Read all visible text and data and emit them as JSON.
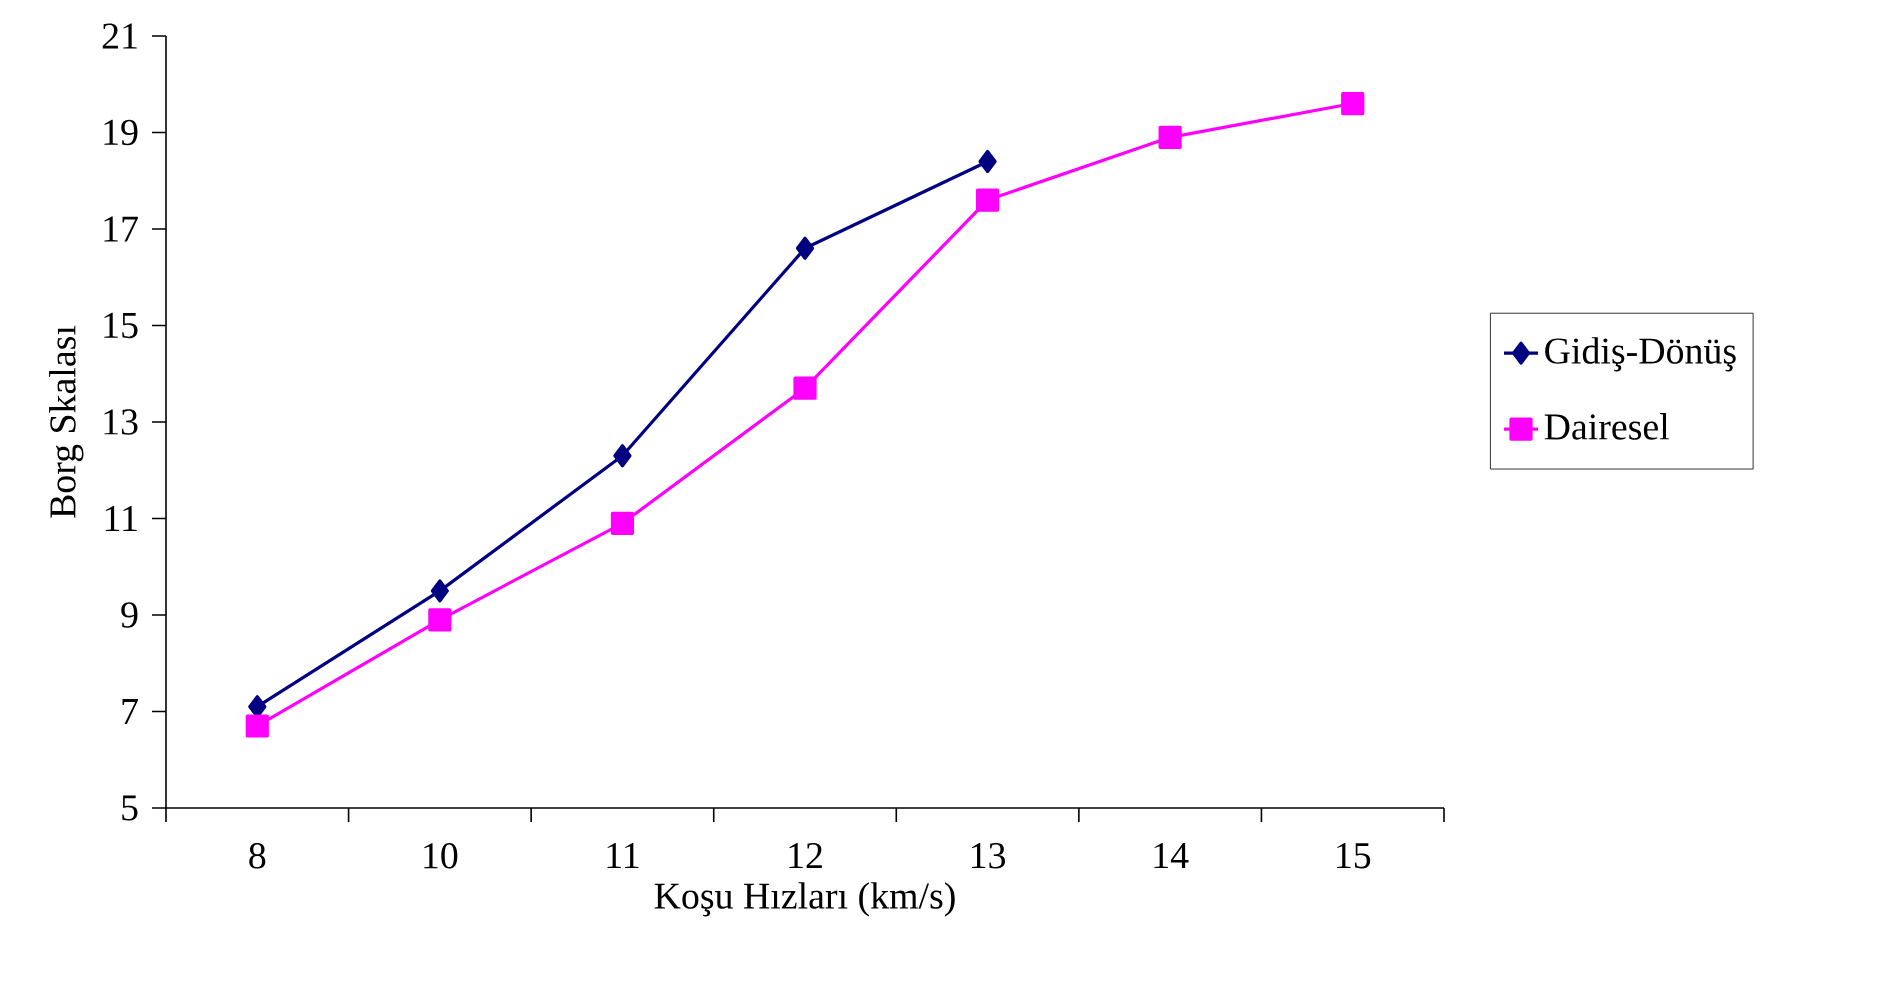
{
  "chart_data": {
    "type": "line",
    "xlabel": "Koşu Hızları (km/s)",
    "ylabel": "Borg Skalası",
    "categories": [
      "8",
      "10",
      "11",
      "12",
      "13",
      "14",
      "15"
    ],
    "ylim": [
      5,
      21
    ],
    "yticks": [
      5,
      7,
      9,
      11,
      13,
      15,
      17,
      19,
      21
    ],
    "grid": false,
    "legend": "right",
    "series": [
      {
        "name": "Gidiş-Dönüş",
        "color": "#000080",
        "marker": "diamond",
        "values": [
          7.1,
          9.5,
          12.3,
          16.6,
          18.4,
          null,
          null
        ]
      },
      {
        "name": "Dairesel",
        "color": "#ff00ff",
        "marker": "square",
        "values": [
          6.7,
          8.9,
          10.9,
          13.7,
          17.6,
          18.9,
          19.6
        ]
      }
    ]
  }
}
